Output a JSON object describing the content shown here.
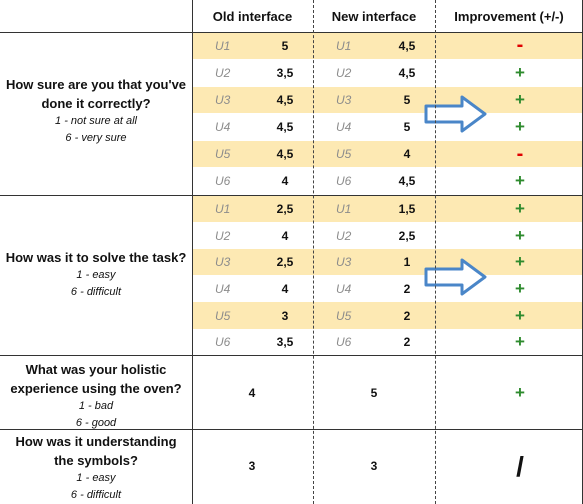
{
  "headers": {
    "old": "Old interface",
    "new": "New interface",
    "improvement": "Improvement (+/-)"
  },
  "questions": [
    {
      "title": "How sure are you that you've done it correctly?",
      "scale_low": "1 - not sure at all",
      "scale_high": "6 - very sure",
      "rows": [
        {
          "user_old": "U1",
          "old": "5",
          "user_new": "U1",
          "new": "4,5",
          "sign": "-"
        },
        {
          "user_old": "U2",
          "old": "3,5",
          "user_new": "U2",
          "new": "4,5",
          "sign": "+"
        },
        {
          "user_old": "U3",
          "old": "4,5",
          "user_new": "U3",
          "new": "5",
          "sign": "+"
        },
        {
          "user_old": "U4",
          "old": "4,5",
          "user_new": "U4",
          "new": "5",
          "sign": "+"
        },
        {
          "user_old": "U5",
          "old": "4,5",
          "user_new": "U5",
          "new": "4",
          "sign": "-"
        },
        {
          "user_old": "U6",
          "old": "4",
          "user_new": "U6",
          "new": "4,5",
          "sign": "+"
        }
      ]
    },
    {
      "title": "How was it to solve the task?",
      "scale_low": "1 - easy",
      "scale_high": "6 - difficult",
      "rows": [
        {
          "user_old": "U1",
          "old": "2,5",
          "user_new": "U1",
          "new": "1,5",
          "sign": "+"
        },
        {
          "user_old": "U2",
          "old": "4",
          "user_new": "U2",
          "new": "2,5",
          "sign": "+"
        },
        {
          "user_old": "U3",
          "old": "2,5",
          "user_new": "U3",
          "new": "1",
          "sign": "+"
        },
        {
          "user_old": "U4",
          "old": "4",
          "user_new": "U4",
          "new": "2",
          "sign": "+"
        },
        {
          "user_old": "U5",
          "old": "3",
          "user_new": "U5",
          "new": "2",
          "sign": "+"
        },
        {
          "user_old": "U6",
          "old": "3,5",
          "user_new": "U6",
          "new": "2",
          "sign": "+"
        }
      ]
    },
    {
      "title": "What was your holistic experience using the oven?",
      "scale_low": "1 - bad",
      "scale_high": "6 - good",
      "old": "4",
      "new": "5",
      "sign": "+"
    },
    {
      "title": "How was it understanding the symbols?",
      "scale_low": "1 - easy",
      "scale_high": "6 - difficult",
      "old": "3",
      "new": "3",
      "sign": "/"
    }
  ],
  "colors": {
    "highlight_row": "#fde9b3",
    "plus": "#2e8b2e",
    "minus": "#e00000",
    "arrow_stroke": "#4a86c8"
  },
  "icons": [
    "right-arrow-icon"
  ]
}
